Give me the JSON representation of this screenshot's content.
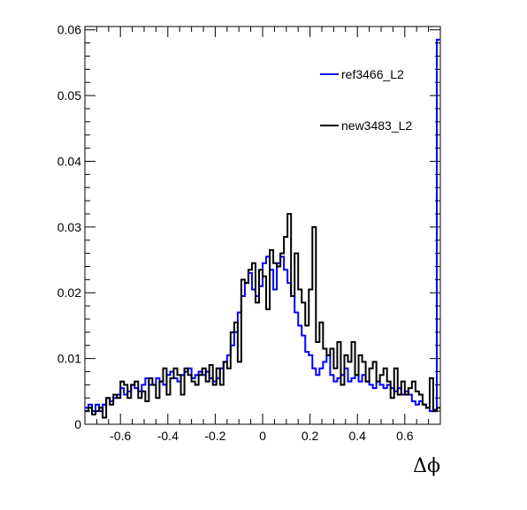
{
  "chart_data": {
    "type": "histogram",
    "title": "",
    "xlabel": "Δϕ",
    "ylabel": "",
    "xlim": [
      -0.75,
      0.75
    ],
    "ylim": [
      0,
      0.0605
    ],
    "bins": 100,
    "grid": false,
    "legend_position": "top-right",
    "x_ticks": [
      {
        "v": -0.6,
        "label": "-0.6"
      },
      {
        "v": -0.4,
        "label": "-0.4"
      },
      {
        "v": -0.2,
        "label": "-0.2"
      },
      {
        "v": 0,
        "label": "0"
      },
      {
        "v": 0.2,
        "label": "0.2"
      },
      {
        "v": 0.4,
        "label": "0.4"
      },
      {
        "v": 0.6,
        "label": "0.6"
      }
    ],
    "y_ticks": [
      {
        "v": 0,
        "label": "0"
      },
      {
        "v": 0.01,
        "label": "0.01"
      },
      {
        "v": 0.02,
        "label": "0.02"
      },
      {
        "v": 0.03,
        "label": "0.03"
      },
      {
        "v": 0.04,
        "label": "0.04"
      },
      {
        "v": 0.05,
        "label": "0.05"
      },
      {
        "v": 0.06,
        "label": "0.06"
      }
    ],
    "series": [
      {
        "name": "ref3466_L2",
        "color": "#0000ff",
        "values": [
          0.0025,
          0.003,
          0.002,
          0.003,
          0.002,
          0.003,
          0.004,
          0.0035,
          0.004,
          0.0045,
          0.0055,
          0.0045,
          0.005,
          0.006,
          0.0055,
          0.005,
          0.006,
          0.007,
          0.006,
          0.006,
          0.007,
          0.0065,
          0.006,
          0.0075,
          0.008,
          0.007,
          0.0065,
          0.0075,
          0.008,
          0.0085,
          0.007,
          0.0075,
          0.008,
          0.0075,
          0.008,
          0.007,
          0.0065,
          0.007,
          0.0085,
          0.0095,
          0.0105,
          0.012,
          0.014,
          0.017,
          0.0195,
          0.0215,
          0.023,
          0.0205,
          0.0195,
          0.021,
          0.0245,
          0.0255,
          0.0235,
          0.0205,
          0.0245,
          0.0255,
          0.0235,
          0.0215,
          0.0195,
          0.017,
          0.015,
          0.0135,
          0.011,
          0.0105,
          0.0085,
          0.0075,
          0.0085,
          0.0095,
          0.0105,
          0.0075,
          0.0065,
          0.007,
          0.0075,
          0.0085,
          0.0065,
          0.007,
          0.0075,
          0.0065,
          0.0075,
          0.0065,
          0.006,
          0.0055,
          0.0065,
          0.006,
          0.0055,
          0.006,
          0.0055,
          0.005,
          0.0055,
          0.0045,
          0.005,
          0.0045,
          0.0035,
          0.003,
          0.0035,
          0.003,
          0.0025,
          0.002,
          0.0022,
          0.0585
        ]
      },
      {
        "name": "new3483_L2",
        "color": "#000000",
        "values": [
          0.002,
          0.0025,
          0.0015,
          0.002,
          0.0025,
          0.001,
          0.004,
          0.003,
          0.0045,
          0.004,
          0.0065,
          0.006,
          0.004,
          0.006,
          0.0065,
          0.004,
          0.005,
          0.0035,
          0.007,
          0.006,
          0.004,
          0.0065,
          0.0085,
          0.0045,
          0.007,
          0.0085,
          0.0075,
          0.0045,
          0.0085,
          0.0075,
          0.0065,
          0.006,
          0.0075,
          0.0085,
          0.0065,
          0.009,
          0.006,
          0.0085,
          0.006,
          0.0095,
          0.0085,
          0.014,
          0.0155,
          0.0095,
          0.022,
          0.0215,
          0.0235,
          0.0245,
          0.0185,
          0.0235,
          0.0225,
          0.0175,
          0.0265,
          0.0245,
          0.024,
          0.026,
          0.0285,
          0.032,
          0.0195,
          0.026,
          0.0205,
          0.0185,
          0.015,
          0.0205,
          0.03,
          0.0125,
          0.0155,
          0.0115,
          0.0105,
          0.0115,
          0.0085,
          0.0125,
          0.006,
          0.0105,
          0.0095,
          0.0125,
          0.0075,
          0.0105,
          0.0095,
          0.0065,
          0.0085,
          0.0095,
          0.0065,
          0.0075,
          0.0085,
          0.0065,
          0.004,
          0.0085,
          0.0045,
          0.0065,
          0.0045,
          0.0055,
          0.0065,
          0.005,
          0.0045,
          0.003,
          0.0025,
          0.007,
          0.002,
          0.0025
        ]
      }
    ]
  }
}
